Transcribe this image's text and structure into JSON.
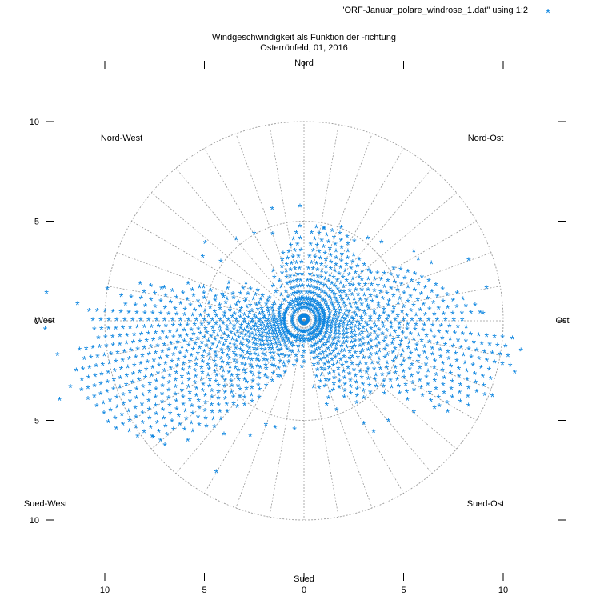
{
  "chart_data": {
    "type": "scatter",
    "coordinate_system": "polar",
    "title": "Windgeschwindigkeit als Funktion der -richtung",
    "subtitle": "Osterrönfeld, 01, 2016",
    "legend": {
      "label": "\"ORF-Januar_polare_windrose_1.dat\" using 1:2",
      "placement": "top-right",
      "marker": "*"
    },
    "colors": {
      "series": "#0a84e0",
      "grid": "#9a9a9a",
      "axis": "#000000"
    },
    "grid": true,
    "r_rings": [
      5,
      10
    ],
    "r_max": 10,
    "spoke_step_deg": 10,
    "x_ticks_bottom": [
      "10",
      "5",
      "0",
      "5",
      "10"
    ],
    "x_ticks_top": [
      "",
      "",
      "",
      "",
      ""
    ],
    "y_ticks_left": [
      "10",
      "5",
      "0",
      "5",
      "10"
    ],
    "direction_labels": {
      "n": "Nord",
      "ne": "Nord-Ost",
      "e": "Ost",
      "se": "Sued-Ost",
      "s": "Sued",
      "sw": "Sued-West",
      "w": "West",
      "nw": "Nord-West"
    },
    "series": [
      {
        "marker": "*",
        "color": "#0a84e0",
        "bands": [
          {
            "dir": 255,
            "r": [
              1.0,
              11.6
            ],
            "step": 0.34
          },
          {
            "dir": 260,
            "r": [
              1.0,
              11.2
            ],
            "step": 0.34
          },
          {
            "dir": 250,
            "r": [
              1.0,
              11.8
            ],
            "step": 0.34
          },
          {
            "dir": 245,
            "r": [
              1.0,
              11.4
            ],
            "step": 0.36
          },
          {
            "dir": 265,
            "r": [
              1.0,
              10.6
            ],
            "step": 0.36
          },
          {
            "dir": 240,
            "r": [
              1.0,
              10.9
            ],
            "step": 0.38
          },
          {
            "dir": 235,
            "r": [
              1.0,
              10.2
            ],
            "step": 0.4
          },
          {
            "dir": 270,
            "r": [
              1.0,
              10.8
            ],
            "step": 0.4
          },
          {
            "dir": 230,
            "r": [
              1.0,
              9.6
            ],
            "step": 0.42
          },
          {
            "dir": 225,
            "r": [
              1.0,
              8.2
            ],
            "step": 0.46
          },
          {
            "dir": 275,
            "r": [
              1.0,
              9.4
            ],
            "step": 0.5
          },
          {
            "dir": 220,
            "r": [
              1.0,
              7.0
            ],
            "step": 0.5
          },
          {
            "dir": 280,
            "r": [
              1.0,
              8.4
            ],
            "step": 0.55
          },
          {
            "dir": 215,
            "r": [
              1.0,
              5.4
            ],
            "step": 0.6
          },
          {
            "dir": 285,
            "r": [
              1.0,
              6.0
            ],
            "step": 0.6
          },
          {
            "dir": 210,
            "r": [
              1.0,
              4.6
            ],
            "step": 0.7
          },
          {
            "dir": 290,
            "r": [
              1.0,
              4.4
            ],
            "step": 0.7
          },
          {
            "dir": 295,
            "r": [
              1.0,
              3.6
            ],
            "step": 0.7
          },
          {
            "dir": 205,
            "r": [
              1.0,
              3.2
            ],
            "step": 0.7
          },
          {
            "dir": 300,
            "r": [
              1.0,
              3.2
            ],
            "step": 0.7
          },
          {
            "dir": 95,
            "r": [
              0.8,
              10.2
            ],
            "step": 0.4
          },
          {
            "dir": 100,
            "r": [
              0.8,
              10.4
            ],
            "step": 0.4
          },
          {
            "dir": 90,
            "r": [
              0.8,
              8.2
            ],
            "step": 0.42
          },
          {
            "dir": 105,
            "r": [
              0.8,
              10.0
            ],
            "step": 0.42
          },
          {
            "dir": 110,
            "r": [
              0.8,
              9.8
            ],
            "step": 0.44
          },
          {
            "dir": 85,
            "r": [
              0.8,
              8.8
            ],
            "step": 0.46
          },
          {
            "dir": 115,
            "r": [
              0.8,
              9.2
            ],
            "step": 0.46
          },
          {
            "dir": 120,
            "r": [
              0.8,
              8.4
            ],
            "step": 0.5
          },
          {
            "dir": 80,
            "r": [
              0.8,
              8.0
            ],
            "step": 0.5
          },
          {
            "dir": 125,
            "r": [
              0.8,
              6.6
            ],
            "step": 0.5
          },
          {
            "dir": 75,
            "r": [
              0.8,
              7.2
            ],
            "step": 0.55
          },
          {
            "dir": 130,
            "r": [
              0.8,
              5.6
            ],
            "step": 0.55
          },
          {
            "dir": 135,
            "r": [
              0.8,
              4.8
            ],
            "step": 0.55
          },
          {
            "dir": 70,
            "r": [
              0.8,
              6.4
            ],
            "step": 0.55
          },
          {
            "dir": 140,
            "r": [
              0.8,
              5.0
            ],
            "step": 0.55
          },
          {
            "dir": 145,
            "r": [
              0.8,
              4.8
            ],
            "step": 0.55
          },
          {
            "dir": 150,
            "r": [
              0.8,
              4.4
            ],
            "step": 0.55
          },
          {
            "dir": 155,
            "r": [
              0.8,
              4.0
            ],
            "step": 0.55
          },
          {
            "dir": 160,
            "r": [
              0.8,
              3.8
            ],
            "step": 0.6
          },
          {
            "dir": 165,
            "r": [
              0.8,
              3.4
            ],
            "step": 0.6
          },
          {
            "dir": 65,
            "r": [
              0.8,
              5.8
            ],
            "step": 0.55
          },
          {
            "dir": 60,
            "r": [
              0.8,
              5.2
            ],
            "step": 0.55
          },
          {
            "dir": 55,
            "r": [
              0.8,
              4.6
            ],
            "step": 0.55
          },
          {
            "dir": 50,
            "r": [
              0.8,
              4.2
            ],
            "step": 0.6
          },
          {
            "dir": 45,
            "r": [
              0.8,
              4.2
            ],
            "step": 0.6
          },
          {
            "dir": 40,
            "r": [
              0.8,
              4.0
            ],
            "step": 0.6
          },
          {
            "dir": 35,
            "r": [
              0.8,
              4.0
            ],
            "step": 0.6
          },
          {
            "dir": 30,
            "r": [
              0.8,
              4.4
            ],
            "step": 0.6
          },
          {
            "dir": 25,
            "r": [
              0.8,
              4.6
            ],
            "step": 0.6
          },
          {
            "dir": 20,
            "r": [
              0.8,
              4.8
            ],
            "step": 0.6
          },
          {
            "dir": 15,
            "r": [
              0.8,
              4.6
            ],
            "step": 0.6
          },
          {
            "dir": 10,
            "r": [
              0.8,
              4.6
            ],
            "step": 0.6
          },
          {
            "dir": 5,
            "r": [
              0.8,
              4.4
            ],
            "step": 0.6
          },
          {
            "dir": 355,
            "r": [
              0.8,
              4.6
            ],
            "step": 0.6
          },
          {
            "dir": 350,
            "r": [
              0.8,
              4.2
            ],
            "step": 0.6
          },
          {
            "dir": 345,
            "r": [
              0.8,
              3.6
            ],
            "step": 0.6
          },
          {
            "dir": 340,
            "r": [
              0.8,
              3.2
            ],
            "step": 0.6
          },
          {
            "dir": 335,
            "r": [
              0.8,
              2.8
            ],
            "step": 0.6
          },
          {
            "dir": 325,
            "r": [
              0.8,
              2.6
            ],
            "step": 0.6
          },
          {
            "dir": 315,
            "r": [
              0.8,
              2.4
            ],
            "step": 0.6
          },
          {
            "dir": 180,
            "r": [
              0.6,
              2.2
            ],
            "step": 0.5
          },
          {
            "dir": 190,
            "r": [
              0.6,
              2.4
            ],
            "step": 0.5
          },
          {
            "dir": 200,
            "r": [
              0.6,
              3.0
            ],
            "step": 0.55
          }
        ],
        "points": [
          {
            "dir": 358,
            "r": 5.7
          },
          {
            "dir": 308,
            "r": 6.3
          },
          {
            "dir": 302,
            "r": 6.0
          },
          {
            "dir": 305,
            "r": 5.1
          },
          {
            "dir": 296,
            "r": 4.2
          },
          {
            "dir": 286,
            "r": 4.2
          },
          {
            "dir": 288,
            "r": 5.3
          },
          {
            "dir": 283,
            "r": 7.2
          },
          {
            "dir": 279,
            "r": 10.0
          },
          {
            "dir": 276,
            "r": 13.0
          },
          {
            "dir": 274,
            "r": 11.4
          },
          {
            "dir": 268,
            "r": 13.0
          },
          {
            "dir": 262,
            "r": 12.5
          },
          {
            "dir": 252,
            "r": 12.9
          },
          {
            "dir": 254,
            "r": 12.2
          },
          {
            "dir": 224,
            "r": 8.4
          },
          {
            "dir": 228,
            "r": 9.4
          },
          {
            "dir": 232,
            "r": 9.6
          },
          {
            "dir": 210,
            "r": 8.8
          },
          {
            "dir": 215,
            "r": 7.0
          },
          {
            "dir": 205,
            "r": 6.4
          },
          {
            "dir": 200,
            "r": 5.6
          },
          {
            "dir": 195,
            "r": 5.6
          },
          {
            "dir": 185,
            "r": 5.5
          },
          {
            "dir": 172,
            "r": 3.4
          },
          {
            "dir": 165,
            "r": 4.4
          },
          {
            "dir": 160,
            "r": 4.8
          },
          {
            "dir": 150,
            "r": 6.0
          },
          {
            "dir": 148,
            "r": 6.6
          },
          {
            "dir": 140,
            "r": 6.6
          },
          {
            "dir": 130,
            "r": 7.2
          },
          {
            "dir": 124,
            "r": 7.9
          },
          {
            "dir": 112,
            "r": 10.2
          },
          {
            "dir": 104,
            "r": 10.9
          },
          {
            "dir": 98,
            "r": 11.0
          },
          {
            "dir": 95,
            "r": 10.5
          },
          {
            "dir": 88,
            "r": 9.0
          },
          {
            "dir": 80,
            "r": 9.3
          },
          {
            "dir": 70,
            "r": 8.8
          },
          {
            "dir": 66,
            "r": 7.0
          },
          {
            "dir": 62,
            "r": 6.5
          },
          {
            "dir": 58,
            "r": 6.5
          },
          {
            "dir": 45,
            "r": 5.5
          },
          {
            "dir": 38,
            "r": 5.2
          },
          {
            "dir": 22,
            "r": 5.0
          },
          {
            "dir": 12,
            "r": 4.7
          },
          {
            "dir": 320,
            "r": 5.3
          },
          {
            "dir": 330,
            "r": 5.0
          },
          {
            "dir": 340,
            "r": 4.6
          },
          {
            "dir": 344,
            "r": 5.8
          }
        ]
      }
    ]
  }
}
